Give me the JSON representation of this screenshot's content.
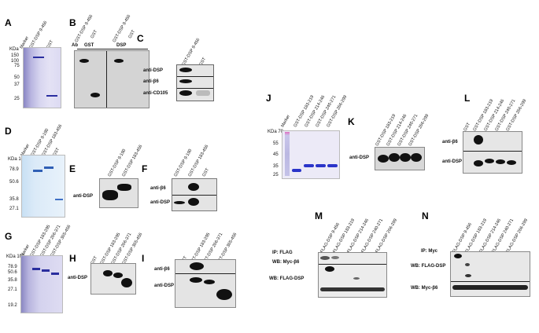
{
  "panels": {
    "A": {
      "label": "A",
      "kda": "KDa",
      "markers": [
        "250",
        "150",
        "100",
        "75",
        "50",
        "37",
        "25"
      ],
      "lanes": [
        "Marker",
        "GST-DSP 9-456",
        "GST"
      ]
    },
    "B": {
      "label": "B",
      "lanes": [
        "GST-DSP 9-456",
        "GST",
        "GST-DSP 9-456",
        "GST"
      ],
      "ab": "Ab",
      "left": "GST",
      "right": "DSP"
    },
    "C": {
      "label": "C",
      "lanes": [
        "GST-DSP 9-456",
        "GST"
      ],
      "rows": [
        "anti-DSP",
        "anti-β6",
        "anti-CD105"
      ]
    },
    "D": {
      "label": "D",
      "kda": "KDa 108",
      "markers": [
        "78.9",
        "50.6",
        "35.8",
        "27.1"
      ],
      "lanes": [
        "Marker",
        "GST-DSP 9-190",
        "GST-DSP 183-456",
        "GST"
      ]
    },
    "E": {
      "label": "E",
      "lanes": [
        "GST-DSP 9-190",
        "GST-DSP 183-456"
      ],
      "rows": [
        "anti-DSP"
      ]
    },
    "F": {
      "label": "F",
      "lanes": [
        "GST-DSP 9-190",
        "GST-DSP 183-456",
        "GST"
      ],
      "rows": [
        "anti-β6",
        "anti-DSP"
      ]
    },
    "G": {
      "label": "G",
      "kda": "KDa 108",
      "markers": [
        "78.9",
        "50.6",
        "35.8",
        "27.1",
        "19.2"
      ],
      "lanes": [
        "Marker",
        "GST-DSP 183-295",
        "GST-DSP 266-371",
        "GST-DSP 365-456"
      ]
    },
    "H": {
      "label": "H",
      "lanes": [
        "GST",
        "GST-DSP 183-295",
        "GST-DSP 266-371",
        "GST-DSP 365-456"
      ],
      "rows": [
        "anti-DSP"
      ]
    },
    "I": {
      "label": "I",
      "lanes": [
        "GST",
        "GST-DSP 183-295",
        "GST-DSP 266-371",
        "GST-DSP 365-456"
      ],
      "rows": [
        "anti-β6",
        "anti-DSP"
      ]
    },
    "J": {
      "label": "J",
      "kda": "KDa 70",
      "markers": [
        "55",
        "45",
        "35",
        "25"
      ],
      "lanes": [
        "Marker",
        "GST-DSP 183-219",
        "GST-DSP 214-246",
        "GST-DSP 240-271",
        "GST-DSP 266-299"
      ]
    },
    "K": {
      "label": "K",
      "lanes": [
        "GST-DSP 183-219",
        "GST-DSP 214-246",
        "GST-DSP 240-271",
        "GST-DSP 266-299"
      ],
      "rows": [
        "anti-DSP"
      ]
    },
    "L": {
      "label": "L",
      "lanes": [
        "GST",
        "GST-DSP 183-219",
        "GST-DSP 214-246",
        "GST-DSP 240-271",
        "GST-DSP 266-299"
      ],
      "rows": [
        "anti-β6",
        "anti-DSP"
      ]
    },
    "M": {
      "label": "M",
      "lanes": [
        "FLAG-DSP 9-456",
        "FLAG-DSP 183-219",
        "FLAG-DSP 214-246",
        "FLAG-DSP 240-271",
        "FLAG-DSP 266-299"
      ],
      "rows": [
        "IP: FLAG",
        "WB: Myc-β6",
        "WB: FLAG-DSP"
      ]
    },
    "N": {
      "label": "N",
      "lanes": [
        "FLAG-DSP 9-456",
        "FLAG-DSP 183-219",
        "FLAG-DSP 214-246",
        "FLAG-DSP 240-271",
        "FLAG-DSP 266-299"
      ],
      "rows": [
        "IP: Myc",
        "WB: FLAG-DSP",
        "WB: Myc-β6"
      ]
    }
  }
}
